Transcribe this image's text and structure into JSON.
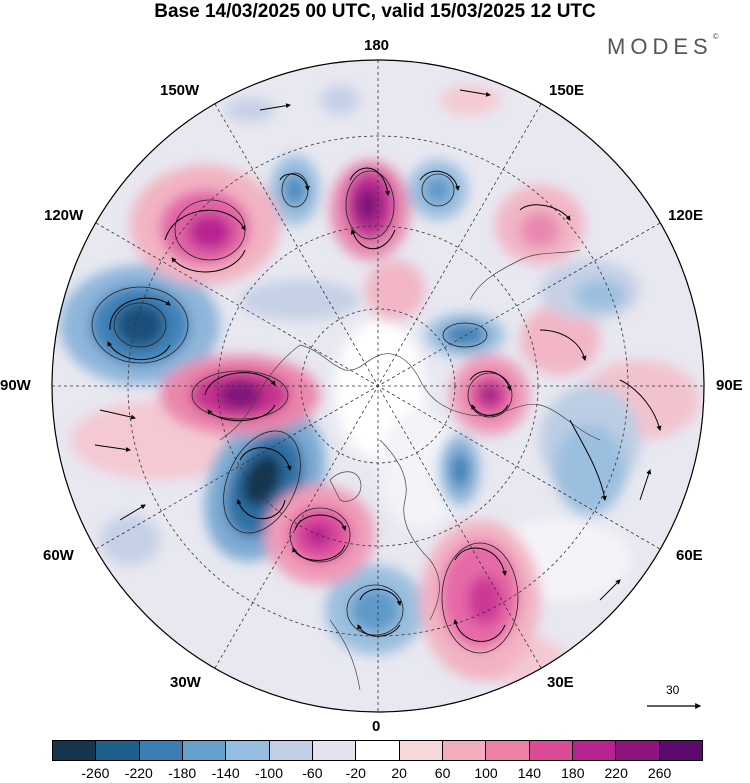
{
  "title": "Base 14/03/2025 00 UTC, valid 15/03/2025 12 UTC",
  "brand": "MODES",
  "brand_mark": "©",
  "map": {
    "projection": "north-polar-stereographic",
    "longitude_labels": {
      "top": "180",
      "bottom": "0",
      "left": "90W",
      "right": "90E",
      "upper_left_1": "150W",
      "upper_left_2": "120W",
      "lower_left_1": "60W",
      "lower_left_2": "30W",
      "upper_right_1": "150E",
      "upper_right_2": "120E",
      "lower_right_1": "60E",
      "lower_right_2": "30E"
    },
    "reference_vector": {
      "value": "30",
      "icon": "arrow-right-icon"
    }
  },
  "colorbar": {
    "colors": [
      "#15354f",
      "#1f5f8c",
      "#3a7fb4",
      "#66a0cc",
      "#95bde0",
      "#c2cfe5",
      "#e3e3ef",
      "#ffffff",
      "#f7d7dc",
      "#f1adbd",
      "#ec80a6",
      "#dc4b98",
      "#b7238f",
      "#8f157e",
      "#5d0a6f"
    ],
    "ticks": [
      "-260",
      "-220",
      "-180",
      "-140",
      "-100",
      "-60",
      "-20",
      "20",
      "60",
      "100",
      "140",
      "180",
      "220",
      "260"
    ]
  }
}
